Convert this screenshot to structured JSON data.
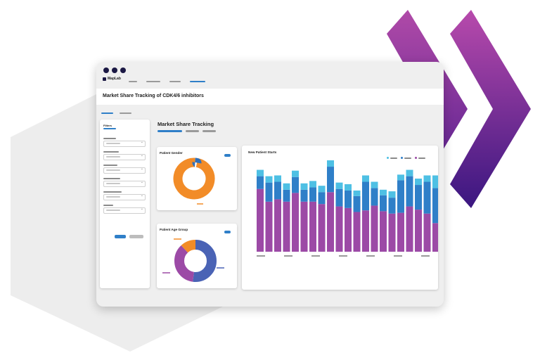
{
  "app": {
    "logo_text": "MapLab",
    "nav_items": [
      {
        "active": false
      },
      {
        "active": false
      },
      {
        "active": false
      },
      {
        "active": true
      }
    ]
  },
  "page": {
    "title": "Market Share Tracking of CDK4/6 inhibitors"
  },
  "filters": {
    "title": "Filters",
    "dropdown_count": 6
  },
  "dashboard": {
    "title": "Market Share Tracking"
  },
  "cards": {
    "patient_gender": {
      "title": "Patient Gender",
      "chart_data": {
        "type": "pie",
        "slices": [
          {
            "value": 98,
            "color": "#f28c28"
          },
          {
            "value": 2,
            "color": "#2f6fb8"
          }
        ]
      }
    },
    "patient_age_group": {
      "title": "Patient Age Group",
      "chart_data": {
        "type": "pie",
        "slices": [
          {
            "value": 52,
            "color": "#4a63b5"
          },
          {
            "value": 36,
            "color": "#9c4aa6"
          },
          {
            "value": 12,
            "color": "#f28c28"
          }
        ]
      }
    },
    "new_patient_starts": {
      "title": "New Patient Starts",
      "chart_data": {
        "type": "bar",
        "stacked": true,
        "ylim": [
          0,
          115
        ],
        "series": [
          {
            "color": "#9c4aa6",
            "values": [
              79,
              63,
              66,
              63,
              74,
              63,
              63,
              60,
              75,
              57,
              55,
              50,
              52,
              58,
              51,
              48,
              49,
              57,
              53,
              48,
              36
            ]
          },
          {
            "color": "#2f7fc8",
            "values": [
              16,
              24,
              22,
              15,
              20,
              15,
              18,
              15,
              32,
              22,
              22,
              20,
              36,
              22,
              20,
              20,
              41,
              38,
              31,
              40,
              44
            ]
          },
          {
            "color": "#4ec0e4",
            "values": [
              8,
              8,
              8,
              8,
              8,
              8,
              8,
              8,
              8,
              8,
              8,
              7,
              8,
              8,
              7,
              8,
              7,
              8,
              8,
              8,
              16
            ]
          }
        ]
      }
    }
  }
}
